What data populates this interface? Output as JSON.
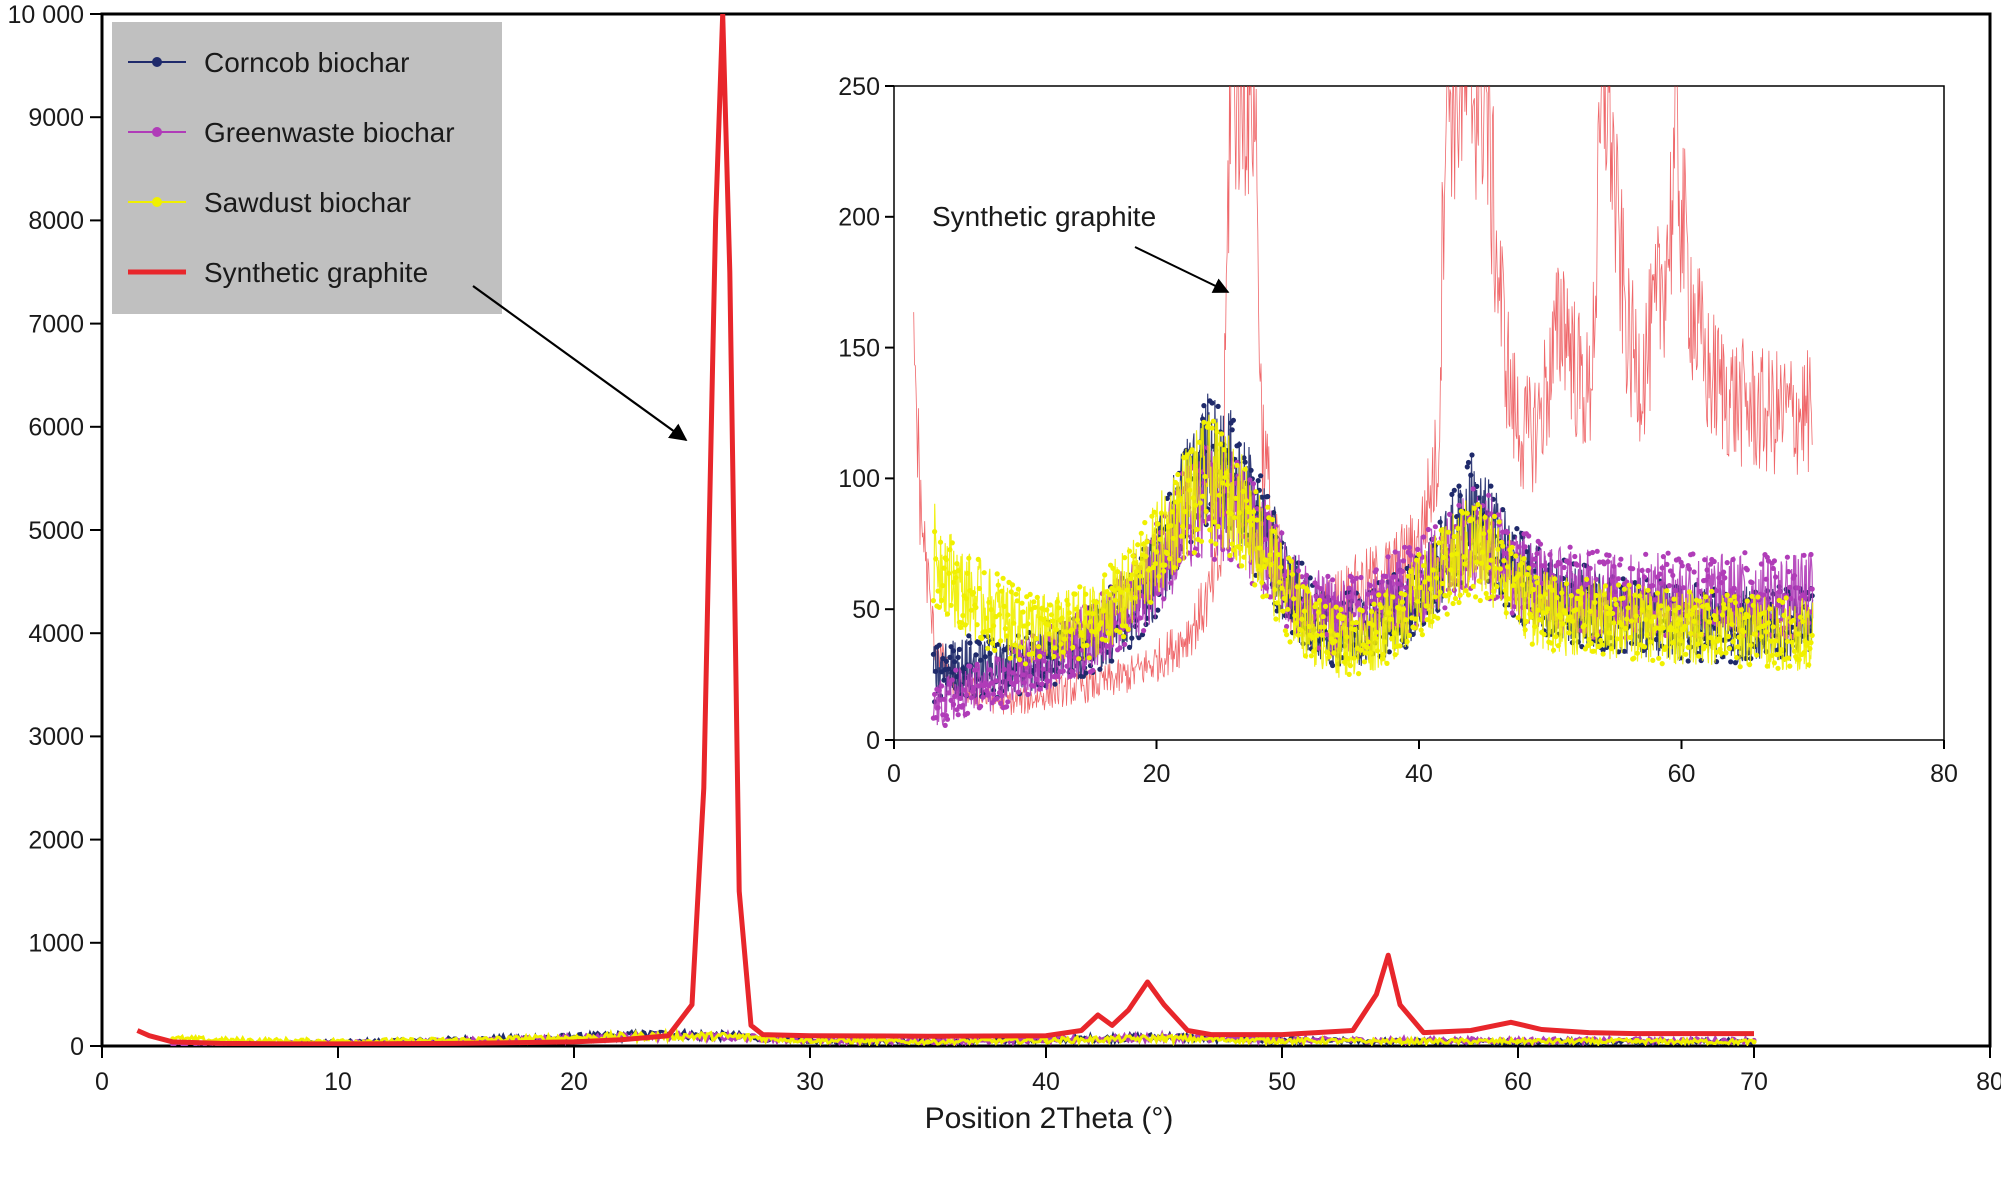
{
  "chart_data": [
    {
      "type": "line",
      "role": "main",
      "xlabel": "Position 2Theta (°)",
      "ylabel": "",
      "xlim": [
        0,
        80
      ],
      "ylim": [
        0,
        10000
      ],
      "x_ticks": [
        0,
        10,
        20,
        30,
        40,
        50,
        60,
        70,
        80
      ],
      "x_tick_labels": [
        "0",
        "10",
        "20",
        "30",
        "40",
        "50",
        "60",
        "70",
        "80"
      ],
      "y_ticks": [
        0,
        1000,
        2000,
        3000,
        4000,
        5000,
        6000,
        7000,
        8000,
        9000,
        10000
      ],
      "y_tick_labels": [
        "0",
        "1000",
        "2000",
        "3000",
        "4000",
        "5000",
        "6000",
        "7000",
        "8000",
        "9000",
        "10 000"
      ],
      "grid": false,
      "legend": {
        "position": "top-left",
        "background": "#c0c0c0",
        "entries": [
          "Corncob biochar",
          "Greenwaste biochar",
          "Sawdust biochar",
          "Synthetic graphite"
        ]
      },
      "annotations": [
        {
          "text": "",
          "type": "arrow",
          "from_label": "Synthetic graphite",
          "points_to_x": 24.5
        }
      ],
      "series": [
        {
          "name": "Corncob biochar",
          "color": "#1f2a6b",
          "style": "line-dots",
          "x": [
            3,
            5,
            10,
            15,
            20,
            24,
            27,
            30,
            35,
            40,
            45,
            50,
            55,
            60,
            65,
            70
          ],
          "y": [
            25,
            28,
            35,
            60,
            85,
            115,
            95,
            55,
            45,
            60,
            90,
            55,
            45,
            42,
            45,
            45
          ]
        },
        {
          "name": "Greenwaste biochar",
          "color": "#b03cb8",
          "style": "line-dots",
          "x": [
            3,
            5,
            10,
            15,
            20,
            24,
            27,
            30,
            35,
            40,
            45,
            50,
            55,
            60,
            65,
            70
          ],
          "y": [
            15,
            20,
            30,
            50,
            75,
            95,
            85,
            55,
            45,
            60,
            80,
            60,
            55,
            55,
            55,
            55
          ]
        },
        {
          "name": "Sawdust biochar",
          "color": "#f0f000",
          "style": "line-dots",
          "x": [
            3,
            5,
            10,
            15,
            20,
            24,
            27,
            30,
            35,
            40,
            45,
            50,
            55,
            60,
            65,
            70
          ],
          "y": [
            70,
            55,
            45,
            55,
            80,
            100,
            90,
            55,
            40,
            55,
            75,
            50,
            45,
            45,
            45,
            40
          ]
        },
        {
          "name": "Synthetic graphite",
          "color": "#e8262b",
          "style": "thick-line",
          "x": [
            1.5,
            2,
            3,
            5,
            8,
            10,
            15,
            20,
            22,
            24,
            25,
            25.5,
            26,
            26.3,
            26.6,
            27,
            27.5,
            28,
            30,
            35,
            40,
            41.5,
            42.2,
            42.8,
            43.5,
            44.3,
            45,
            46,
            47,
            50,
            53,
            54,
            54.5,
            55,
            56,
            58,
            59.7,
            61,
            63,
            65,
            68,
            70
          ],
          "y": [
            150,
            100,
            40,
            25,
            20,
            20,
            25,
            40,
            60,
            100,
            400,
            2500,
            8000,
            10000,
            7500,
            1500,
            200,
            110,
            100,
            95,
            100,
            150,
            300,
            200,
            350,
            620,
            400,
            150,
            110,
            110,
            150,
            500,
            880,
            400,
            130,
            150,
            230,
            160,
            130,
            120,
            120,
            120
          ]
        }
      ]
    },
    {
      "type": "line",
      "role": "inset",
      "xlabel": "",
      "ylabel": "",
      "xlim": [
        0,
        80
      ],
      "ylim": [
        0,
        250
      ],
      "x_ticks": [
        0,
        20,
        40,
        60,
        80
      ],
      "x_tick_labels": [
        "0",
        "20",
        "40",
        "60",
        "80"
      ],
      "y_ticks": [
        0,
        50,
        100,
        150,
        200,
        250
      ],
      "y_tick_labels": [
        "0",
        "50",
        "100",
        "150",
        "200",
        "250"
      ],
      "grid": false,
      "annotations": [
        {
          "text": "Synthetic graphite",
          "type": "arrow",
          "points_to_x": 25.5,
          "points_to_y": 172
        }
      ],
      "series": [
        {
          "name": "Synthetic graphite",
          "color": "#e8262b",
          "style": "thin-noisy",
          "x": [
            1.5,
            2,
            3,
            4,
            6,
            8,
            10,
            12,
            14,
            16,
            18,
            20,
            22,
            23,
            24,
            25,
            25.6,
            26,
            26.5,
            27,
            27.5,
            28,
            29,
            30,
            32,
            34,
            36,
            38,
            40,
            41.5,
            42,
            43,
            44,
            44.3,
            45,
            46,
            47,
            48,
            49,
            50,
            51,
            52,
            53,
            53.5,
            54,
            54.5,
            55,
            56,
            57,
            58,
            59,
            59.7,
            60,
            61,
            62,
            64,
            66,
            68,
            70
          ],
          "y": [
            155,
            90,
            40,
            25,
            18,
            15,
            15,
            18,
            20,
            22,
            25,
            30,
            38,
            45,
            55,
            70,
            250,
            250,
            250,
            250,
            250,
            120,
            75,
            55,
            45,
            55,
            60,
            65,
            75,
            110,
            250,
            250,
            250,
            250,
            250,
            180,
            130,
            115,
            120,
            140,
            165,
            140,
            130,
            180,
            250,
            250,
            200,
            150,
            140,
            160,
            190,
            230,
            200,
            160,
            140,
            130,
            125,
            125,
            125
          ]
        },
        {
          "name": "Corncob biochar",
          "color": "#1f2a6b",
          "style": "dots",
          "x": [
            3,
            5,
            8,
            10,
            12,
            15,
            18,
            20,
            22,
            24,
            26,
            28,
            30,
            32,
            34,
            36,
            38,
            40,
            42,
            44,
            46,
            48,
            50,
            55,
            60,
            65,
            70
          ],
          "y": [
            25,
            28,
            28,
            30,
            33,
            38,
            50,
            65,
            90,
            108,
            100,
            80,
            60,
            45,
            42,
            43,
            48,
            55,
            70,
            88,
            75,
            60,
            55,
            48,
            45,
            44,
            45
          ]
        },
        {
          "name": "Greenwaste biochar",
          "color": "#b03cb8",
          "style": "dots",
          "x": [
            3,
            5,
            8,
            10,
            12,
            15,
            18,
            20,
            22,
            24,
            26,
            28,
            30,
            32,
            34,
            36,
            38,
            40,
            42,
            44,
            46,
            48,
            50,
            55,
            60,
            65,
            70
          ],
          "y": [
            12,
            18,
            22,
            27,
            32,
            40,
            52,
            65,
            82,
            92,
            88,
            75,
            60,
            50,
            47,
            48,
            55,
            60,
            68,
            78,
            72,
            62,
            58,
            55,
            55,
            55,
            55
          ]
        },
        {
          "name": "Sawdust biochar",
          "color": "#f0f000",
          "style": "dots",
          "x": [
            3,
            5,
            8,
            10,
            12,
            15,
            18,
            20,
            22,
            24,
            26,
            28,
            30,
            32,
            34,
            36,
            38,
            40,
            42,
            44,
            46,
            48,
            50,
            55,
            60,
            65,
            70
          ],
          "y": [
            72,
            58,
            48,
            43,
            42,
            45,
            58,
            72,
            90,
            100,
            92,
            75,
            55,
            42,
            37,
            38,
            45,
            55,
            65,
            75,
            68,
            55,
            48,
            45,
            43,
            42,
            40
          ]
        }
      ]
    }
  ]
}
